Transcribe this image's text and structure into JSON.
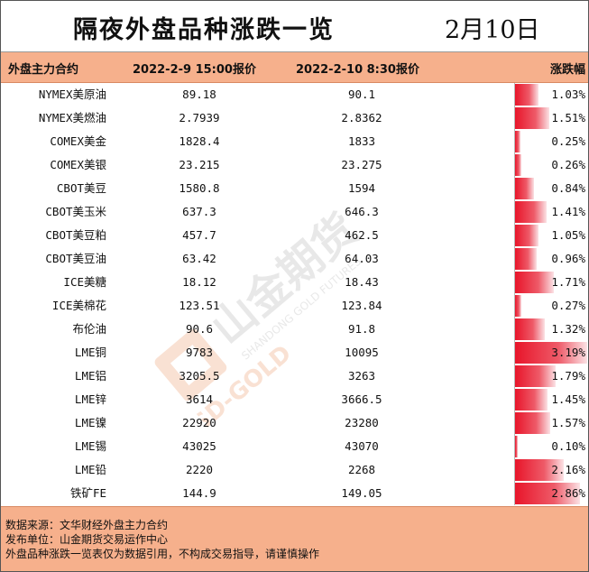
{
  "header": {
    "title": "隔夜外盘品种涨跌一览",
    "date": "2月10日"
  },
  "columns": {
    "name": "外盘主力合约",
    "price1": "2022-2-9 15:00报价",
    "price2": "2022-2-10 8:30报价",
    "change": "涨跌幅"
  },
  "rows": [
    {
      "name": "NYMEX美原油",
      "p1": "89.18",
      "p2": "90.1",
      "pct": "1.03%",
      "value": 1.03
    },
    {
      "name": "NYMEX美燃油",
      "p1": "2.7939",
      "p2": "2.8362",
      "pct": "1.51%",
      "value": 1.51
    },
    {
      "name": "COMEX美金",
      "p1": "1828.4",
      "p2": "1833",
      "pct": "0.25%",
      "value": 0.25
    },
    {
      "name": "COMEX美银",
      "p1": "23.215",
      "p2": "23.275",
      "pct": "0.26%",
      "value": 0.26
    },
    {
      "name": "CBOT美豆",
      "p1": "1580.8",
      "p2": "1594",
      "pct": "0.84%",
      "value": 0.84
    },
    {
      "name": "CBOT美玉米",
      "p1": "637.3",
      "p2": "646.3",
      "pct": "1.41%",
      "value": 1.41
    },
    {
      "name": "CBOT美豆粕",
      "p1": "457.7",
      "p2": "462.5",
      "pct": "1.05%",
      "value": 1.05
    },
    {
      "name": "CBOT美豆油",
      "p1": "63.42",
      "p2": "64.03",
      "pct": "0.96%",
      "value": 0.96
    },
    {
      "name": "ICE美糖",
      "p1": "18.12",
      "p2": "18.43",
      "pct": "1.71%",
      "value": 1.71
    },
    {
      "name": "ICE美棉花",
      "p1": "123.51",
      "p2": "123.84",
      "pct": "0.27%",
      "value": 0.27
    },
    {
      "name": "布伦油",
      "p1": "90.6",
      "p2": "91.8",
      "pct": "1.32%",
      "value": 1.32
    },
    {
      "name": "LME铜",
      "p1": "9783",
      "p2": "10095",
      "pct": "3.19%",
      "value": 3.19
    },
    {
      "name": "LME铝",
      "p1": "3205.5",
      "p2": "3263",
      "pct": "1.79%",
      "value": 1.79
    },
    {
      "name": "LME锌",
      "p1": "3614",
      "p2": "3666.5",
      "pct": "1.45%",
      "value": 1.45
    },
    {
      "name": "LME镍",
      "p1": "22920",
      "p2": "23280",
      "pct": "1.57%",
      "value": 1.57
    },
    {
      "name": "LME锡",
      "p1": "43025",
      "p2": "43070",
      "pct": "0.10%",
      "value": 0.1
    },
    {
      "name": "LME铅",
      "p1": "2220",
      "p2": "2268",
      "pct": "2.16%",
      "value": 2.16
    },
    {
      "name": "铁矿FE",
      "p1": "144.9",
      "p2": "149.05",
      "pct": "2.86%",
      "value": 2.86
    }
  ],
  "footer": {
    "line1": "数据来源：文华财经外盘主力合约",
    "line2": "发布单位：山金期货交易运作中心",
    "line3": "外盘品种涨跌一览表仅为数据引用，不构成交易指导，请谨慎操作"
  },
  "watermark": {
    "cn": "山金期货",
    "en1": "SHANDONG GOLD FUTURES",
    "en2": "SD-GOLD"
  },
  "colors": {
    "header_bg": "#f6b08c",
    "bar_red": "#e8152a"
  }
}
